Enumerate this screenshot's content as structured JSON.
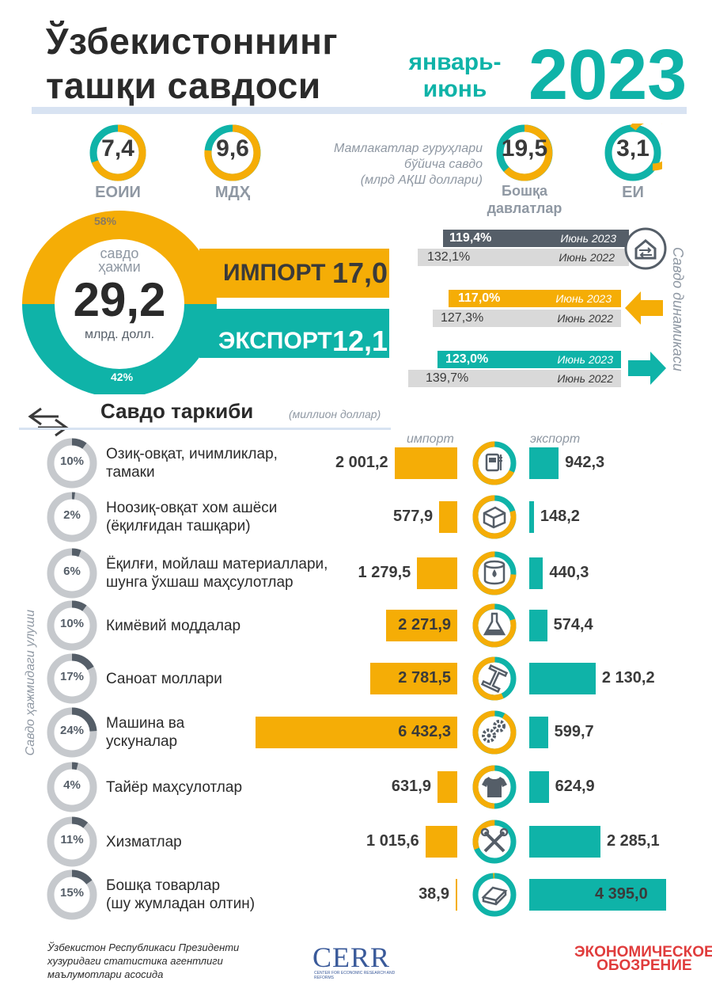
{
  "header": {
    "title_line1": "Ўзбекистоннинг",
    "title_line2": "ташқи савдоси",
    "period_line1": "январь-",
    "period_line2": "июнь",
    "year": "2023"
  },
  "groups": {
    "caption_line1": "Мамлакатлар гуруҳлари",
    "caption_line2": "бўйича савдо",
    "caption_line3": "(млрд АҚШ доллари)",
    "items": [
      {
        "value": "7,4",
        "label": "ЕОИИ"
      },
      {
        "value": "9,6",
        "label": "МДҲ"
      },
      {
        "value": "19,5",
        "label_line1": "Бошқа",
        "label_line2": "давлатлар"
      },
      {
        "value": "3,1",
        "label": "ЕИ"
      }
    ]
  },
  "volume": {
    "label_line1": "савдо",
    "label_line2": "ҳажми",
    "value": "29,2",
    "unit": "млрд. долл.",
    "import_share": "58%",
    "export_share": "42%",
    "import_label": "ИМПОРТ",
    "import_value": "17,0",
    "export_label": "ЭКСПОРТ",
    "export_value": "12,1"
  },
  "dynamics": {
    "caption": "Савдо динамикаси",
    "rows": [
      {
        "kind": "turnover",
        "v2023": "119,4%",
        "l2023": "Июнь 2023",
        "v2022": "132,1%",
        "l2022": "Июнь 2022"
      },
      {
        "kind": "import",
        "v2023": "117,0%",
        "l2023": "Июнь 2023",
        "v2022": "127,3%",
        "l2022": "Июнь 2022"
      },
      {
        "kind": "export",
        "v2023": "123,0%",
        "l2023": "Июнь 2023",
        "v2022": "139,7%",
        "l2022": "Июнь 2022"
      }
    ]
  },
  "composition": {
    "title": "Савдо таркиби",
    "unit": "(миллион доллар)",
    "import_head": "импорт",
    "export_head": "экспорт",
    "share_caption": "Савдо ҳажмидаги улуши"
  },
  "chart_data": {
    "type": "bar",
    "title": "Савдо таркиби",
    "unit": "(миллион доллар)",
    "categories": [
      "Озиқ-овқат, ичимликлар, тамаки",
      "Ноозиқ-овқат хом ашёси (ёқилғидан ташқари)",
      "Ёқилғи, мойлаш материаллари, шунга ўхшаш маҳсулотлар",
      "Кимёвий моддалар",
      "Саноат моллари",
      "Машина ва ускуналар",
      "Тайёр маҳсулотлар",
      "Хизматлар",
      "Бошқа товарлар (шу жумладан олтин)"
    ],
    "label_lines": [
      [
        "Озиқ-овқат, ичимликлар,",
        "тамаки"
      ],
      [
        "Ноозиқ-овқат хом ашёси",
        "(ёқилғидан ташқари)"
      ],
      [
        "Ёқилғи, мойлаш материаллари,",
        "шунга ўхшаш маҳсулотлар"
      ],
      [
        "Кимёвий моддалар"
      ],
      [
        "Саноат моллари"
      ],
      [
        "Машина ва",
        "ускуналар"
      ],
      [
        "Тайёр маҳсулотлар"
      ],
      [
        "Хизматлар"
      ],
      [
        "Бошқа товарлар",
        "(шу жумладан олтин)"
      ]
    ],
    "shares": [
      10,
      2,
      6,
      10,
      17,
      24,
      4,
      11,
      15
    ],
    "share_labels": [
      "10%",
      "2%",
      "6%",
      "10%",
      "17%",
      "24%",
      "4%",
      "11%",
      "15%"
    ],
    "import_shares": [
      0.68,
      0.8,
      0.74,
      0.8,
      0.57,
      0.92,
      0.5,
      0.31,
      0.01
    ],
    "series": [
      {
        "name": "импорт",
        "color": "#f5ad06",
        "values": [
          2001.2,
          577.9,
          1279.5,
          2271.9,
          2781.5,
          6432.3,
          631.9,
          1015.6,
          38.9
        ],
        "labels": [
          "2 001,2",
          "577,9",
          "1 279,5",
          "2 271,9",
          "2 781,5",
          "6 432,3",
          "631,9",
          "1 015,6",
          "38,9"
        ]
      },
      {
        "name": "экспорт",
        "color": "#0fb3a8",
        "values": [
          942.3,
          148.2,
          440.3,
          574.4,
          2130.2,
          599.7,
          624.9,
          2285.1,
          4395.0
        ],
        "labels": [
          "942,3",
          "148,2",
          "440,3",
          "574,4",
          "2 130,2",
          "599,7",
          "624,9",
          "2 285,1",
          "4 395,0"
        ]
      }
    ],
    "icons": [
      "food-icon",
      "raw-materials-icon",
      "fuel-barrel-icon",
      "chemistry-flask-icon",
      "steel-beam-icon",
      "gears-icon",
      "tshirt-icon",
      "tools-icon",
      "gold-bar-icon"
    ]
  },
  "footer": {
    "source_line1": "Ўзбекистон Республикаси Президенти",
    "source_line2": "хузуридаги статистика агентлиги",
    "source_line3": "маълумотлари асосида",
    "logo1": "CERR",
    "logo1_sub": "CENTER FOR ECONOMIC RESEARCH AND REFORMS",
    "logo2_line1": "ЭКОНОМИЧЕСКОЕ",
    "logo2_line2": "ОБОЗРЕНИЕ"
  },
  "colors": {
    "accent": "#0fb3a8",
    "import": "#f5ad06",
    "export": "#0fb3a8",
    "gray": "#8f98a3",
    "dark": "#555e68"
  }
}
